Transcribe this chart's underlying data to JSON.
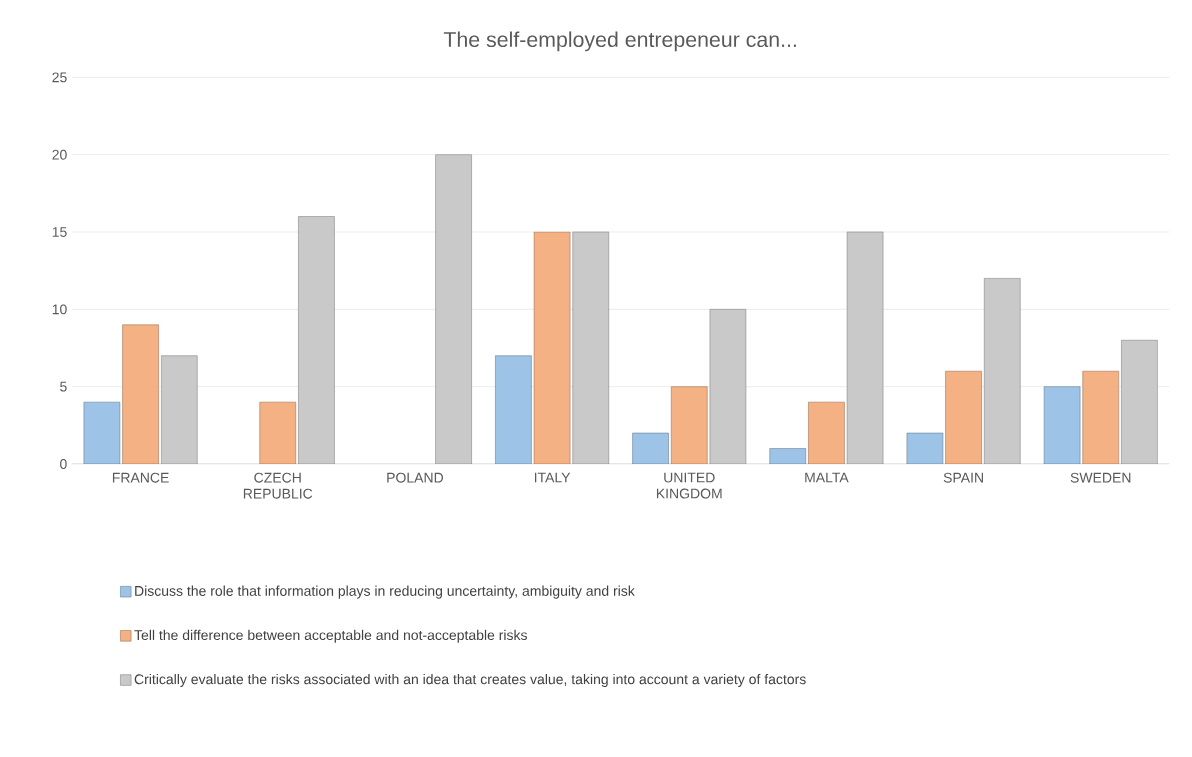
{
  "chart_data": {
    "type": "bar",
    "title": "The self-employed entrepeneur can...",
    "categories": [
      "FRANCE",
      "CZECH REPUBLIC",
      "POLAND",
      "ITALY",
      "UNITED KINGDOM",
      "MALTA",
      "SPAIN",
      "SWEDEN"
    ],
    "series": [
      {
        "name": "Discuss the role that information plays in reducing uncertainty, ambiguity and risk",
        "color": "#9dc3e6",
        "values": [
          4,
          null,
          null,
          7,
          2,
          1,
          2,
          5
        ]
      },
      {
        "name": "Tell the difference between acceptable and not-acceptable risks",
        "color": "#f4b183",
        "values": [
          9,
          4,
          null,
          15,
          5,
          4,
          6,
          6
        ]
      },
      {
        "name": "Critically evaluate the risks associated with an idea that creates value, taking into account a variety of factors",
        "color": "#c9c9c9",
        "values": [
          7,
          16,
          20,
          15,
          10,
          15,
          12,
          8
        ]
      }
    ],
    "ylim": [
      0,
      25
    ],
    "yticks": [
      0,
      5,
      10,
      15,
      20,
      25
    ],
    "grid": "y",
    "legend": "bottom"
  }
}
